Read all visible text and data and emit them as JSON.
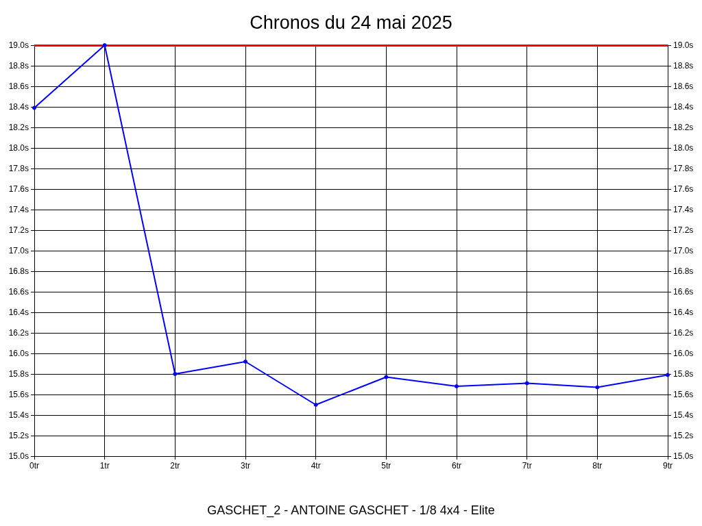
{
  "chart_data": {
    "type": "line",
    "title": "Chronos du 24 mai 2025",
    "xlabel": "GASCHET_2 - ANTOINE GASCHET - 1/8 4x4 - Elite",
    "x": [
      0,
      1,
      2,
      3,
      4,
      5,
      6,
      7,
      8,
      9
    ],
    "series": [
      {
        "color": "#0000ff",
        "values": [
          18.39,
          19.0,
          15.8,
          15.92,
          15.5,
          15.77,
          15.68,
          15.71,
          15.67,
          15.79
        ]
      }
    ],
    "xlim": [
      0,
      9
    ],
    "xticks": [
      {
        "value": 0,
        "label": "0tr"
      },
      {
        "value": 1,
        "label": "1tr"
      },
      {
        "value": 2,
        "label": "2tr"
      },
      {
        "value": 3,
        "label": "3tr"
      },
      {
        "value": 4,
        "label": "4tr"
      },
      {
        "value": 5,
        "label": "5tr"
      },
      {
        "value": 6,
        "label": "6tr"
      },
      {
        "value": 7,
        "label": "7tr"
      },
      {
        "value": 8,
        "label": "8tr"
      },
      {
        "value": 9,
        "label": "9tr"
      }
    ],
    "ylim": [
      15.0,
      19.0
    ],
    "yticks": [
      {
        "value": 15.0,
        "label": "15.0s"
      },
      {
        "value": 15.2,
        "label": "15.2s"
      },
      {
        "value": 15.4,
        "label": "15.4s"
      },
      {
        "value": 15.6,
        "label": "15.6s"
      },
      {
        "value": 15.8,
        "label": "15.8s"
      },
      {
        "value": 16.0,
        "label": "16.0s"
      },
      {
        "value": 16.2,
        "label": "16.2s"
      },
      {
        "value": 16.4,
        "label": "16.4s"
      },
      {
        "value": 16.6,
        "label": "16.6s"
      },
      {
        "value": 16.8,
        "label": "16.8s"
      },
      {
        "value": 17.0,
        "label": "17.0s"
      },
      {
        "value": 17.2,
        "label": "17.2s"
      },
      {
        "value": 17.4,
        "label": "17.4s"
      },
      {
        "value": 17.6,
        "label": "17.6s"
      },
      {
        "value": 17.8,
        "label": "17.8s"
      },
      {
        "value": 18.0,
        "label": "18.0s"
      },
      {
        "value": 18.2,
        "label": "18.2s"
      },
      {
        "value": 18.4,
        "label": "18.4s"
      },
      {
        "value": 18.6,
        "label": "18.6s"
      },
      {
        "value": 18.8,
        "label": "18.8s"
      },
      {
        "value": 19.0,
        "label": "19.0s"
      }
    ],
    "y2lim": [
      15.0,
      19.0
    ],
    "y2ticks": [
      {
        "value": 15.0,
        "label": "15.0s"
      },
      {
        "value": 15.2,
        "label": "15.2s"
      },
      {
        "value": 15.4,
        "label": "15.4s"
      },
      {
        "value": 15.6,
        "label": "15.6s"
      },
      {
        "value": 15.8,
        "label": "15.8s"
      },
      {
        "value": 16.0,
        "label": "16.0s"
      },
      {
        "value": 16.2,
        "label": "16.2s"
      },
      {
        "value": 16.4,
        "label": "16.4s"
      },
      {
        "value": 16.6,
        "label": "16.6s"
      },
      {
        "value": 16.8,
        "label": "16.8s"
      },
      {
        "value": 17.0,
        "label": "17.0s"
      },
      {
        "value": 17.2,
        "label": "17.2s"
      },
      {
        "value": 17.4,
        "label": "17.4s"
      },
      {
        "value": 17.6,
        "label": "17.6s"
      },
      {
        "value": 17.8,
        "label": "17.8s"
      },
      {
        "value": 18.0,
        "label": "18.0s"
      },
      {
        "value": 18.2,
        "label": "18.2s"
      },
      {
        "value": 18.4,
        "label": "18.4s"
      },
      {
        "value": 18.6,
        "label": "18.6s"
      },
      {
        "value": 18.8,
        "label": "18.8s"
      },
      {
        "value": 19.0,
        "label": "19.0s"
      }
    ],
    "ref_lines": [
      {
        "axis": "y",
        "value": 19.0,
        "color": "#ff0000"
      }
    ],
    "grid": true,
    "marker": "circle",
    "line_style": "solid"
  }
}
